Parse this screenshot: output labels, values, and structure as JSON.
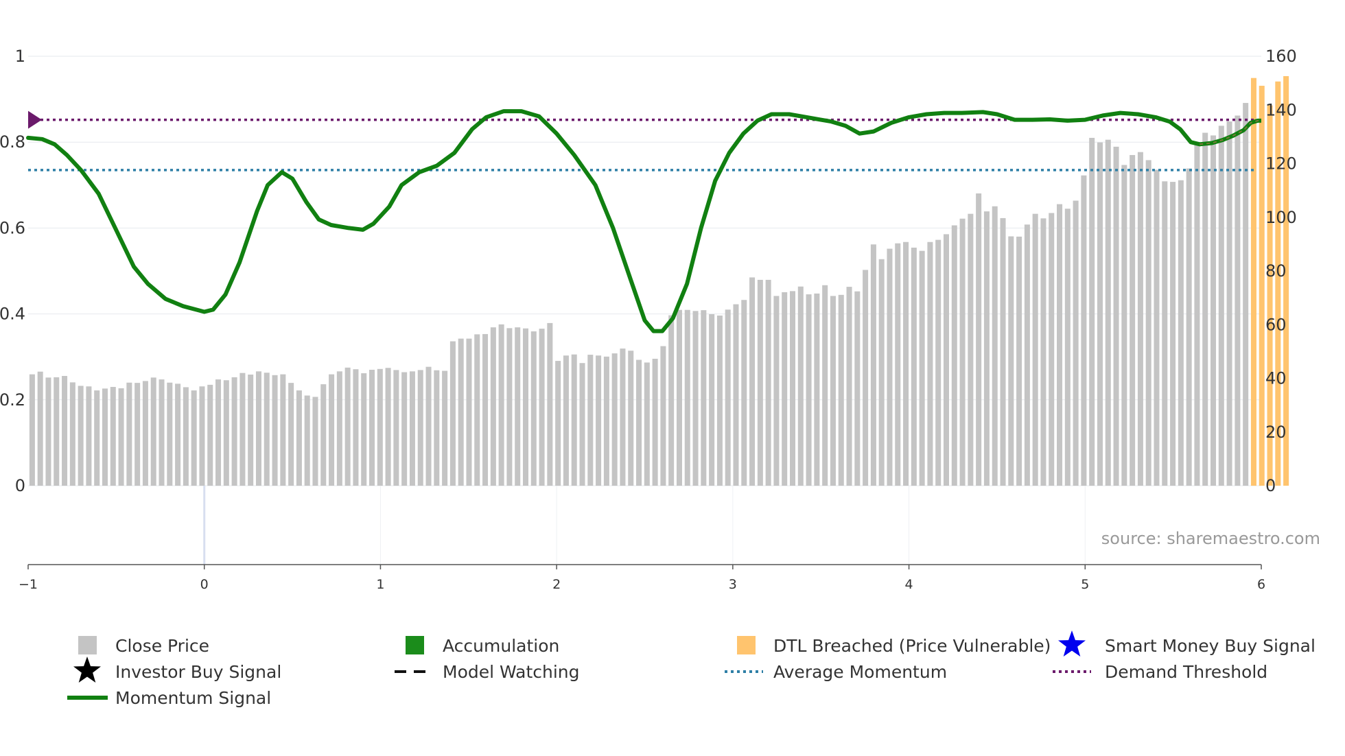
{
  "colors": {
    "close_price": "#c4c4c4",
    "dtl_breached": "#ffc46e",
    "accumulation": "#1b8c1b",
    "momentum": "#118011",
    "average_momentum": "#2e7fa6",
    "demand_threshold": "#6b1a6b",
    "smart_money": "#0000ee",
    "grid": "#e6e9ee"
  },
  "chart_data": {
    "type": "bar+line",
    "source": "source: sharemaestro.com",
    "left_axis": {
      "ylim": [
        0,
        1
      ],
      "ticks": [
        0,
        0.2,
        0.4,
        0.6,
        0.8,
        1
      ],
      "tick_labels": [
        "0",
        "0.2",
        "0.4",
        "0.6",
        "0.8",
        "1"
      ]
    },
    "right_axis": {
      "ylim": [
        0,
        160
      ],
      "ticks": [
        0,
        20,
        40,
        60,
        80,
        100,
        120,
        140,
        160
      ],
      "tick_labels": [
        "0",
        "20",
        "40",
        "60",
        "80",
        "100",
        "120",
        "140",
        "160"
      ]
    },
    "x_axis": {
      "xlim": [
        -1,
        6
      ],
      "ticks": [
        -1,
        0,
        1,
        2,
        3,
        4,
        5,
        6
      ],
      "tick_labels": [
        "−1",
        "0",
        "1",
        "2",
        "3",
        "4",
        "5",
        "6"
      ]
    },
    "average_momentum": 0.735,
    "demand_threshold": 0.852,
    "close_price": [
      41.5,
      42.5,
      40.3,
      40.4,
      40.9,
      38.5,
      37.2,
      37.0,
      35.5,
      36.2,
      36.8,
      36.3,
      38.4,
      38.3,
      39.0,
      40.3,
      39.6,
      38.4,
      38.0,
      36.7,
      35.5,
      37.0,
      37.6,
      39.6,
      39.3,
      40.4,
      42.0,
      41.4,
      42.6,
      42.1,
      41.2,
      41.5,
      38.3,
      35.5,
      33.6,
      33.1,
      37.8,
      41.5,
      42.6,
      44.0,
      43.4,
      41.9,
      43.2,
      43.5,
      43.9,
      43.1,
      42.3,
      42.6,
      43.1,
      44.3,
      43.0,
      42.8,
      53.8,
      54.8,
      54.8,
      56.4,
      56.5,
      59.0,
      60.1,
      58.7,
      59.0,
      58.6,
      57.5,
      58.5,
      60.6,
      46.5,
      48.5,
      48.9,
      45.7,
      48.8,
      48.5,
      48.1,
      49.3,
      51.1,
      50.3,
      46.9,
      45.9,
      47.3,
      52.0,
      63.5,
      65.5,
      65.5,
      65.1,
      65.4,
      63.9,
      63.4,
      65.6,
      67.6,
      69.2,
      77.6,
      76.7,
      76.7,
      70.7,
      72.1,
      72.5,
      74.2,
      71.3,
      71.6,
      74.7,
      70.7,
      71.1,
      74.1,
      72.4,
      80.4,
      89.9,
      84.4,
      88.3,
      90.3,
      90.8,
      88.7,
      87.5,
      90.8,
      91.6,
      93.7,
      97.0,
      99.5,
      101.3,
      108.9,
      102.2,
      104.1,
      99.7,
      92.9,
      92.8,
      97.3,
      101.3,
      99.6,
      101.6,
      104.9,
      103.2,
      106.2,
      115.6,
      129.6,
      127.9,
      128.9,
      126.3,
      119.5,
      123.2,
      124.3,
      121.3,
      117.7,
      113.4,
      113.2,
      113.8,
      118.2,
      127.6,
      131.5,
      130.5,
      134.1,
      135.7,
      137.9,
      142.6,
      151.9,
      149.0,
      141.7,
      150.6,
      152.6
    ],
    "dtl_breached_from_index": 151,
    "momentum_signal": [
      [
        -1.0,
        0.81
      ],
      [
        -0.92,
        0.807
      ],
      [
        -0.85,
        0.795
      ],
      [
        -0.78,
        0.77
      ],
      [
        -0.7,
        0.735
      ],
      [
        -0.6,
        0.68
      ],
      [
        -0.5,
        0.595
      ],
      [
        -0.4,
        0.51
      ],
      [
        -0.32,
        0.47
      ],
      [
        -0.22,
        0.435
      ],
      [
        -0.12,
        0.418
      ],
      [
        0.0,
        0.405
      ],
      [
        0.05,
        0.41
      ],
      [
        0.12,
        0.445
      ],
      [
        0.2,
        0.52
      ],
      [
        0.3,
        0.64
      ],
      [
        0.36,
        0.7
      ],
      [
        0.44,
        0.73
      ],
      [
        0.5,
        0.715
      ],
      [
        0.58,
        0.66
      ],
      [
        0.65,
        0.62
      ],
      [
        0.72,
        0.607
      ],
      [
        0.82,
        0.6
      ],
      [
        0.9,
        0.596
      ],
      [
        0.96,
        0.61
      ],
      [
        1.05,
        0.65
      ],
      [
        1.12,
        0.7
      ],
      [
        1.22,
        0.73
      ],
      [
        1.32,
        0.745
      ],
      [
        1.42,
        0.775
      ],
      [
        1.52,
        0.83
      ],
      [
        1.6,
        0.858
      ],
      [
        1.7,
        0.872
      ],
      [
        1.8,
        0.872
      ],
      [
        1.9,
        0.86
      ],
      [
        2.0,
        0.82
      ],
      [
        2.1,
        0.77
      ],
      [
        2.22,
        0.7
      ],
      [
        2.32,
        0.6
      ],
      [
        2.42,
        0.48
      ],
      [
        2.5,
        0.385
      ],
      [
        2.55,
        0.36
      ],
      [
        2.6,
        0.36
      ],
      [
        2.66,
        0.39
      ],
      [
        2.74,
        0.47
      ],
      [
        2.82,
        0.6
      ],
      [
        2.9,
        0.71
      ],
      [
        2.98,
        0.775
      ],
      [
        3.06,
        0.82
      ],
      [
        3.14,
        0.85
      ],
      [
        3.22,
        0.865
      ],
      [
        3.32,
        0.865
      ],
      [
        3.42,
        0.858
      ],
      [
        3.5,
        0.852
      ],
      [
        3.56,
        0.848
      ],
      [
        3.64,
        0.838
      ],
      [
        3.72,
        0.82
      ],
      [
        3.8,
        0.825
      ],
      [
        3.9,
        0.845
      ],
      [
        4.0,
        0.858
      ],
      [
        4.1,
        0.865
      ],
      [
        4.2,
        0.868
      ],
      [
        4.3,
        0.868
      ],
      [
        4.42,
        0.87
      ],
      [
        4.5,
        0.865
      ],
      [
        4.6,
        0.852
      ],
      [
        4.7,
        0.852
      ],
      [
        4.8,
        0.853
      ],
      [
        4.9,
        0.85
      ],
      [
        5.0,
        0.852
      ],
      [
        5.1,
        0.862
      ],
      [
        5.2,
        0.868
      ],
      [
        5.3,
        0.865
      ],
      [
        5.4,
        0.858
      ],
      [
        5.48,
        0.848
      ],
      [
        5.54,
        0.83
      ],
      [
        5.6,
        0.8
      ],
      [
        5.65,
        0.795
      ]
    ],
    "model_watching": [
      [
        5.65,
        0.795
      ],
      [
        5.72,
        0.798
      ],
      [
        5.78,
        0.805
      ],
      [
        5.84,
        0.815
      ],
      [
        5.9,
        0.828
      ],
      [
        5.94,
        0.845
      ],
      [
        5.98,
        0.85
      ],
      [
        6.0,
        0.85
      ]
    ],
    "legend": [
      {
        "label": "Close Price",
        "symbol": "square",
        "color": "close_price"
      },
      {
        "label": "Accumulation",
        "symbol": "square",
        "color": "accumulation"
      },
      {
        "label": "DTL Breached (Price Vulnerable)",
        "symbol": "square",
        "color": "dtl_breached"
      },
      {
        "label": "Smart Money Buy Signal",
        "symbol": "star",
        "color": "smart_money"
      },
      {
        "label": "Investor Buy Signal",
        "symbol": "star",
        "color": "investor"
      },
      {
        "label": "Model Watching",
        "symbol": "dash",
        "color": "model"
      },
      {
        "label": "Average Momentum",
        "symbol": "dots",
        "color": "average_momentum"
      },
      {
        "label": "Demand Threshold",
        "symbol": "dots",
        "color": "demand_threshold"
      },
      {
        "label": "Momentum Signal",
        "symbol": "line",
        "color": "momentum"
      }
    ]
  }
}
